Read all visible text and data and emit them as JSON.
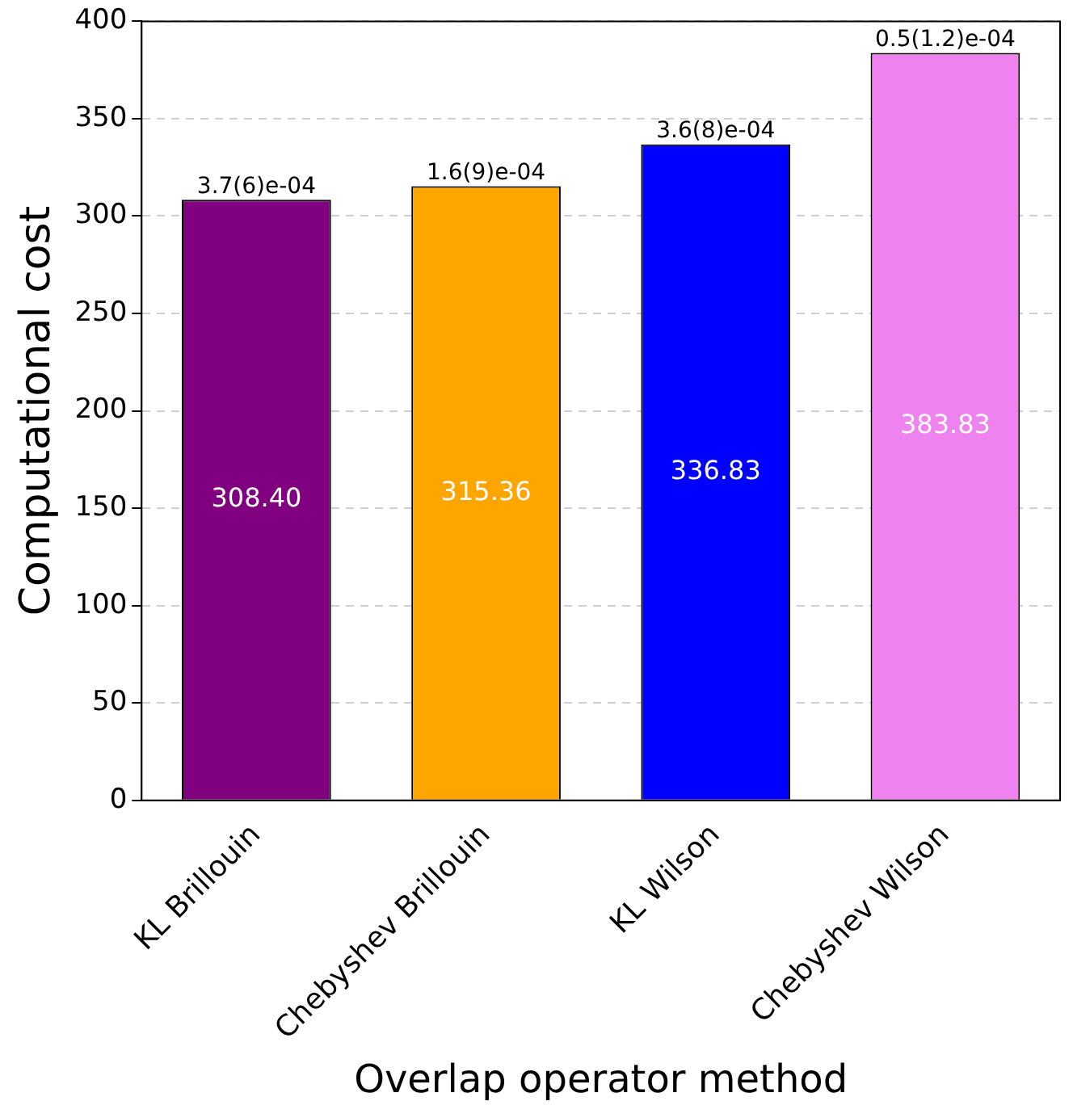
{
  "chart_data": {
    "type": "bar",
    "xlabel": "Overlap operator method",
    "ylabel": "Computational cost",
    "categories": [
      "KL Brillouin",
      "Chebyshev Brillouin",
      "KL Wilson",
      "Chebyshev Wilson"
    ],
    "values": [
      308.4,
      315.36,
      336.83,
      383.83
    ],
    "colors": [
      "#800080",
      "#ffa500",
      "#0000ff",
      "#ee82ee"
    ],
    "ylim": [
      0,
      400
    ],
    "yticks": [
      0,
      50,
      100,
      150,
      200,
      250,
      300,
      350,
      400
    ],
    "value_labels": [
      "308.40",
      "315.36",
      "336.83",
      "383.83"
    ],
    "grid": "y",
    "legend": false,
    "annotations": [
      {
        "text": "3.7(6)e-04",
        "x": "KL Brillouin",
        "y": 308.4
      },
      {
        "text": "1.6(9)e-04",
        "x": "Chebyshev Brillouin",
        "y": 315.36
      },
      {
        "text": "3.6(8)e-04",
        "x": "KL Wilson",
        "y": 336.83
      },
      {
        "text": "0.5(1.2)e-04",
        "x": "Chebyshev Wilson",
        "y": 383.83
      }
    ]
  }
}
